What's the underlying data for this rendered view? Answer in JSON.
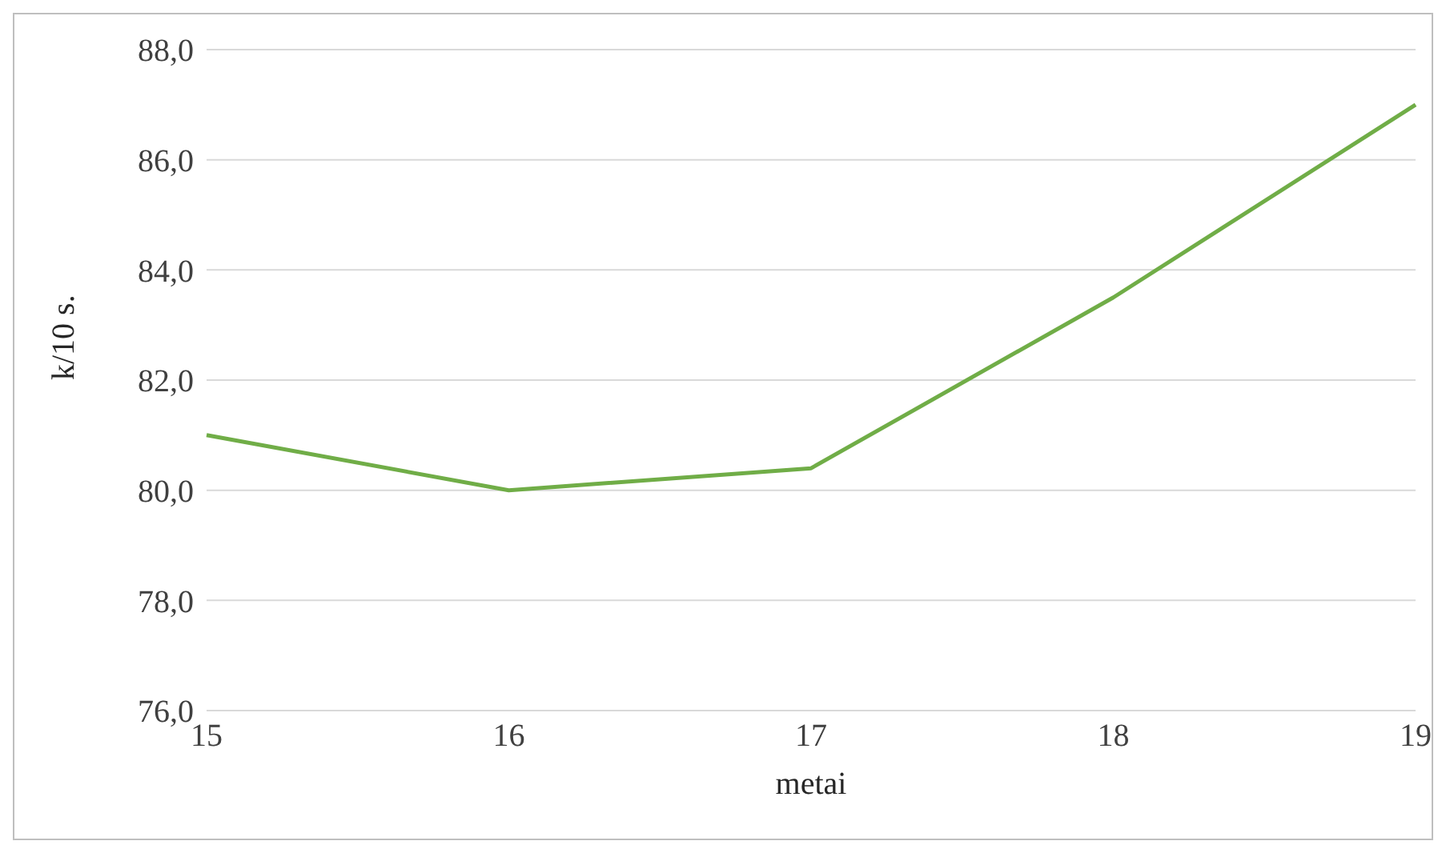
{
  "chart_data": {
    "type": "line",
    "xlabel": "metai",
    "ylabel": "k/10 s.",
    "categories": [
      "15",
      "16",
      "17",
      "18",
      "19"
    ],
    "series": [
      {
        "color": "#70ad47",
        "values": [
          81.0,
          80.0,
          80.4,
          83.5,
          87.0
        ]
      }
    ],
    "ylim": [
      76,
      88
    ],
    "yticks": [
      {
        "value": 76,
        "label": "76,0"
      },
      {
        "value": 78,
        "label": "78,0"
      },
      {
        "value": 80,
        "label": "80,0"
      },
      {
        "value": 82,
        "label": "82,0"
      },
      {
        "value": 84,
        "label": "84,0"
      },
      {
        "value": 86,
        "label": "86,0"
      },
      {
        "value": 88,
        "label": "88,0"
      }
    ],
    "grid": "y",
    "legend": false,
    "marker": "none",
    "line_style": "solid"
  }
}
